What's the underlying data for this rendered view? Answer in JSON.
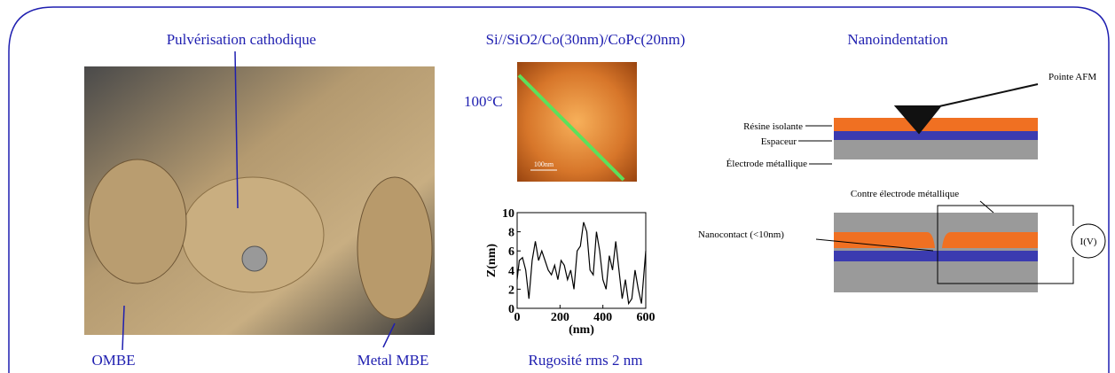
{
  "photo": {
    "title": "Pulvérisation cathodique",
    "label_left": "OMBE",
    "label_right": "Metal MBE"
  },
  "afm": {
    "title": "Si//SiO2/Co(30nm)/CoPc(20nm)",
    "temperature": "100°C",
    "scale": "100nm",
    "caption": "Rugosité rms 2 nm"
  },
  "chart_data": {
    "type": "line",
    "x_label": "(nm)",
    "y_label": "Z(nm)",
    "color": "#000000",
    "x": [
      0,
      10,
      25,
      40,
      55,
      70,
      85,
      100,
      115,
      130,
      145,
      160,
      175,
      190,
      205,
      220,
      235,
      250,
      265,
      280,
      295,
      310,
      325,
      340,
      355,
      370,
      385,
      400,
      415,
      430,
      445,
      460,
      475,
      490,
      505,
      520,
      535,
      550,
      565,
      580,
      600
    ],
    "values": [
      3,
      5,
      5.3,
      4,
      1,
      5,
      7,
      5,
      6,
      5,
      4,
      3.5,
      4.5,
      3,
      5,
      4.5,
      3,
      4,
      2,
      6,
      6.5,
      9,
      8,
      4,
      3.5,
      8,
      6,
      3,
      2,
      5.5,
      4,
      7,
      4,
      1,
      3,
      0.5,
      1,
      4,
      2,
      0.5,
      6
    ],
    "xlim": [
      0,
      600
    ],
    "ylim": [
      0,
      10
    ],
    "xticks": [
      0,
      200,
      400,
      600
    ],
    "yticks": [
      0,
      2,
      4,
      6,
      8,
      10
    ]
  },
  "nano": {
    "title": "Nanoindentation",
    "tip": "Pointe AFM",
    "resin": "Résine isolante",
    "spacer": "Espaceur",
    "electrode": "Électrode métallique",
    "counter": "Contre électrode métallique",
    "contact": "Nanocontact (<10nm)",
    "meter": "I(V)"
  }
}
